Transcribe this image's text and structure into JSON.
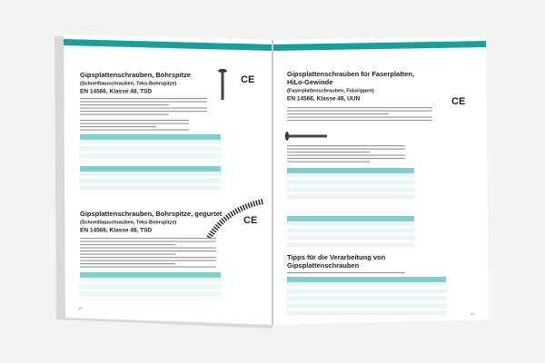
{
  "left_page": {
    "sections": [
      {
        "title_lines": [
          "Gipsplattenschrauben, Bohrspitze"
        ],
        "subtitle": "(Schnellbauschrauben, Teks-Bohrspitze)",
        "standard": "EN 14566, Klasse 48, TSD",
        "ce_mark": "CE"
      },
      {
        "title_lines": [
          "Gipsplattenschrauben, Bohrspitze, gegurtet"
        ],
        "subtitle": "(Schnellbauschrauben, Teks-Bohrspitze)",
        "standard": "EN 14566, Klasse 48, TSD",
        "ce_mark": "CE"
      }
    ],
    "page_number": "18"
  },
  "right_page": {
    "sections": [
      {
        "title_lines": [
          "Gipsplattenschrauben für Faserplatten,",
          "HiLo-Gewinde"
        ],
        "subtitle": "(Faserplattenschrauben, Fräsrippen)",
        "standard": "EN 14566, Klasse 48, UUN",
        "ce_mark": "CE"
      },
      {
        "title_lines": [
          "Tipps für die Verarbeitung von",
          "Gipsplattenschrauben"
        ]
      }
    ],
    "page_number": "19"
  }
}
